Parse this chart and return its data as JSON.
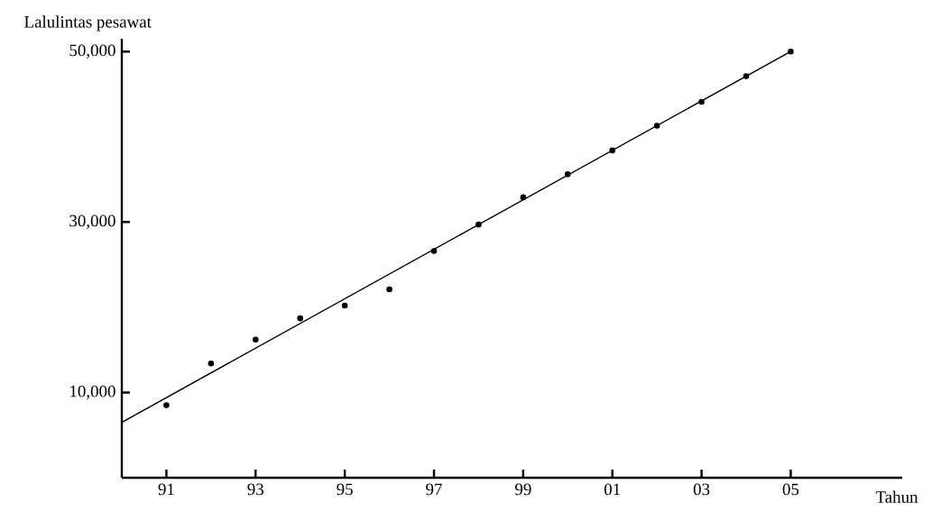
{
  "chart_data": {
    "type": "scatter",
    "xlabel": "Tahun",
    "ylabel": "Lalulintas pesawat",
    "xlim": [
      1990,
      2007.5
    ],
    "ylim": [
      0,
      51500
    ],
    "xticks": [
      {
        "value": 1991,
        "label": "91"
      },
      {
        "value": 1993,
        "label": "93"
      },
      {
        "value": 1995,
        "label": "95"
      },
      {
        "value": 1997,
        "label": "97"
      },
      {
        "value": 1999,
        "label": "99"
      },
      {
        "value": 2001,
        "label": "01"
      },
      {
        "value": 2003,
        "label": "03"
      },
      {
        "value": 2005,
        "label": "05"
      }
    ],
    "yticks": [
      {
        "value": 10000,
        "label": "10,000"
      },
      {
        "value": 30000,
        "label": "30,000"
      },
      {
        "value": 50000,
        "label": "50,000"
      }
    ],
    "grid": false,
    "series": [
      {
        "marker": "circle",
        "color": "#000000",
        "x": [
          1991,
          1992,
          1993,
          1994,
          1995,
          1996,
          1997,
          1998,
          1999,
          2000,
          2001,
          2002,
          2003,
          2004,
          2005
        ],
        "values": [
          8500,
          13400,
          16200,
          18700,
          20200,
          22100,
          26600,
          29700,
          32900,
          35600,
          38400,
          41300,
          44100,
          47100,
          50000
        ]
      },
      {
        "type": "line",
        "marker": "none",
        "color": "#000000",
        "line_style": "solid",
        "x": [
          1990,
          2005
        ],
        "values": [
          6500,
          50000
        ]
      }
    ]
  }
}
